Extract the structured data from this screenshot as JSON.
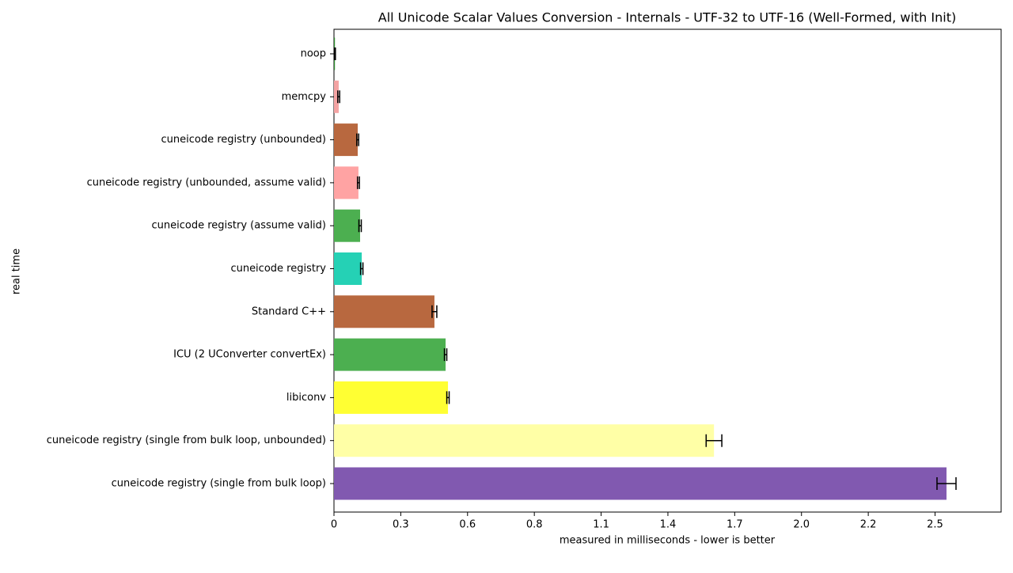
{
  "chart_data": {
    "type": "barh",
    "title": "All Unicode Scalar Values Conversion - Internals - UTF-32 to UTF-16 (Well-Formed, with Init)",
    "xlabel": "measured in milliseconds - lower is better",
    "ylabel": "real time",
    "categories": [
      "noop",
      "memcpy",
      "cuneicode registry (unbounded)",
      "cuneicode registry (unbounded, assume valid)",
      "cuneicode registry (assume valid)",
      "cuneicode registry",
      "Standard C++",
      "ICU (2 UConverter convertEx)",
      "libiconv",
      "cuneicode registry (single from bulk loop, unbounded)",
      "cuneicode registry (single from bulk loop)"
    ],
    "values": [
      0.004,
      0.02,
      0.1,
      0.103,
      0.11,
      0.117,
      0.423,
      0.47,
      0.48,
      1.6,
      2.579
    ],
    "errors": [
      0.002,
      0.004,
      0.004,
      0.004,
      0.005,
      0.005,
      0.01,
      0.005,
      0.005,
      0.033,
      0.04
    ],
    "colors": [
      "#2e8b2e",
      "#f4a3a3",
      "#b8683f",
      "#ffa3a3",
      "#4caf50",
      "#25d1b5",
      "#b8683f",
      "#4caf50",
      "#ffff33",
      "#ffffa6",
      "#8159b0"
    ],
    "xlim": [
      0,
      2.809
    ],
    "xticks": [
      0,
      {
        "value": 0.2812,
        "label": "0.3"
      },
      {
        "value": 0.5624,
        "label": "0.6"
      },
      {
        "value": 0.8436,
        "label": "0.8"
      },
      {
        "value": 1.1248,
        "label": "1.1"
      },
      {
        "value": 1.406,
        "label": "1.4"
      },
      {
        "value": 1.6872,
        "label": "1.7"
      },
      {
        "value": 1.9684,
        "label": "2.0"
      },
      {
        "value": 2.2496,
        "label": "2.2"
      },
      {
        "value": 2.5308,
        "label": "2.5"
      }
    ]
  }
}
